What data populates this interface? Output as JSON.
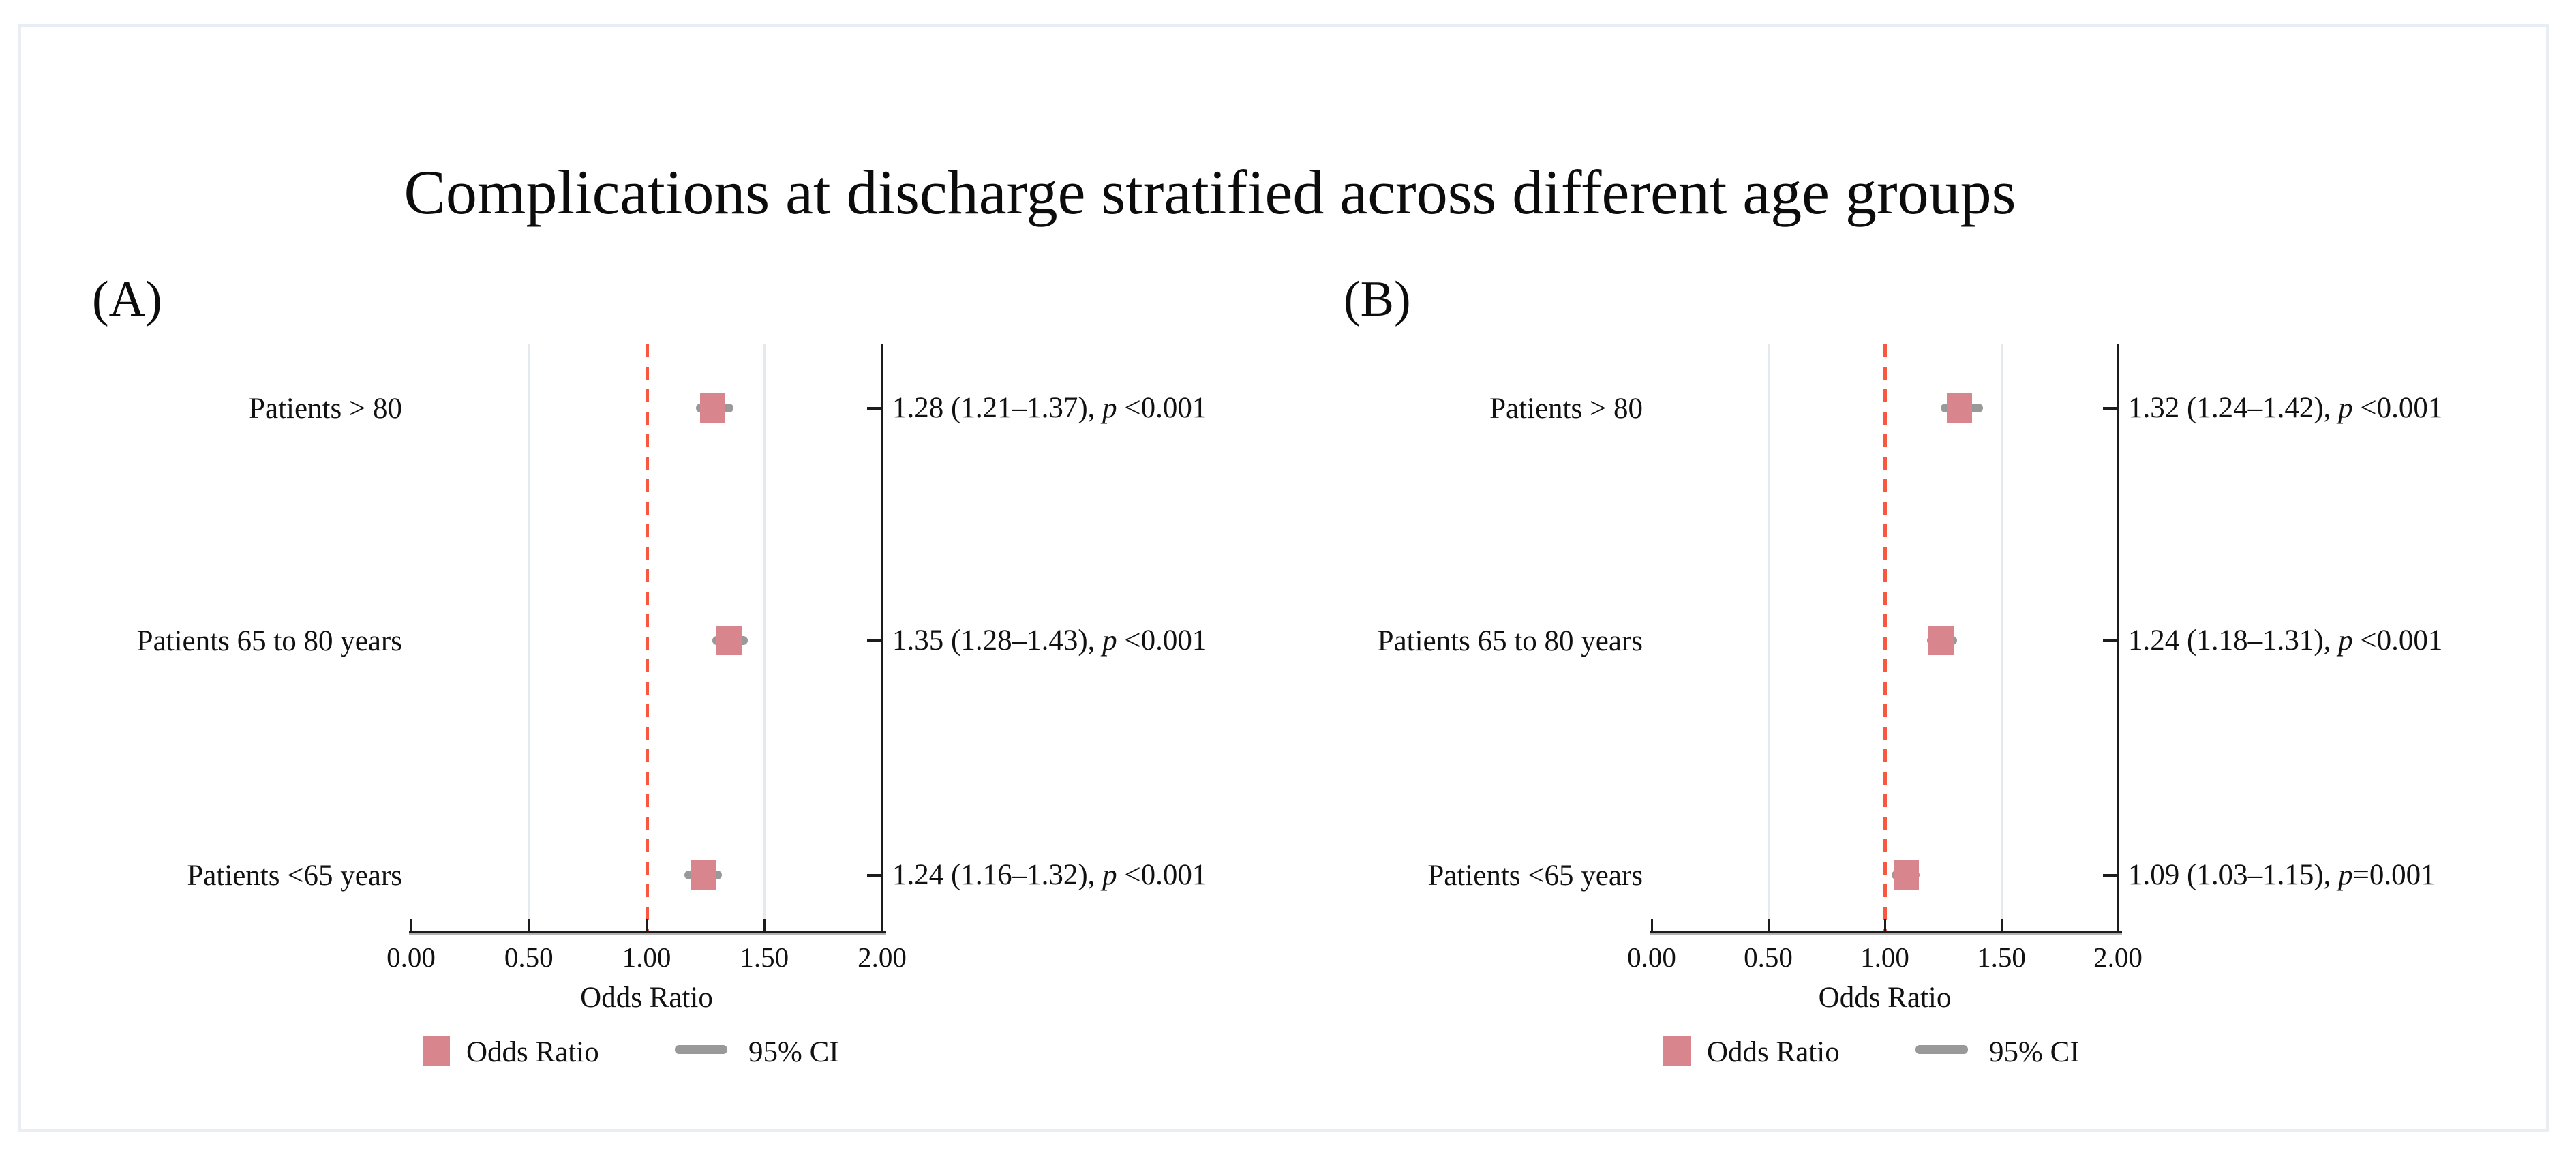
{
  "title": "Complications at discharge stratified across different age groups",
  "p_symbol": "p",
  "colors": {
    "marker": "#d9858d",
    "ci": "#999999",
    "reference_line": "#f9573f",
    "gridline": "#e3e9ef",
    "axis": "#1c1c1c",
    "frame_border": "#e8eef3"
  },
  "chart_data": [
    {
      "type": "scatter",
      "subtype": "forest-plot",
      "panel_label": "(A)",
      "xlabel": "Odds Ratio",
      "xlim": [
        0.0,
        2.0
      ],
      "xticks": [
        {
          "value": 0.0,
          "label": "0.00"
        },
        {
          "value": 0.5,
          "label": "0.50"
        },
        {
          "value": 1.0,
          "label": "1.00"
        },
        {
          "value": 1.5,
          "label": "1.50"
        },
        {
          "value": 2.0,
          "label": "2.00"
        }
      ],
      "gridlines": [
        0.5,
        1.5
      ],
      "reference_line": 1.0,
      "grid": "on",
      "legend_position": "bottom",
      "legend": [
        {
          "label": "Odds Ratio",
          "swatch": "square"
        },
        {
          "label": "95% CI",
          "swatch": "line"
        }
      ],
      "rows": [
        {
          "label": "Patients > 80",
          "or": 1.28,
          "ci_low": 1.21,
          "ci_high": 1.37,
          "estimate_text": "1.28 (1.21–1.37), ",
          "p_text": " <0.001"
        },
        {
          "label": "Patients 65 to 80 years",
          "or": 1.35,
          "ci_low": 1.28,
          "ci_high": 1.43,
          "estimate_text": "1.35 (1.28–1.43), ",
          "p_text": " <0.001"
        },
        {
          "label": "Patients <65 years",
          "or": 1.24,
          "ci_low": 1.16,
          "ci_high": 1.32,
          "estimate_text": "1.24 (1.16–1.32), ",
          "p_text": " <0.001"
        }
      ]
    },
    {
      "type": "scatter",
      "subtype": "forest-plot",
      "panel_label": "(B)",
      "xlabel": "Odds Ratio",
      "xlim": [
        0.0,
        2.0
      ],
      "xticks": [
        {
          "value": 0.0,
          "label": "0.00"
        },
        {
          "value": 0.5,
          "label": "0.50"
        },
        {
          "value": 1.0,
          "label": "1.00"
        },
        {
          "value": 1.5,
          "label": "1.50"
        },
        {
          "value": 2.0,
          "label": "2.00"
        }
      ],
      "gridlines": [
        0.5,
        1.5
      ],
      "reference_line": 1.0,
      "grid": "on",
      "legend_position": "bottom",
      "legend": [
        {
          "label": "Odds Ratio",
          "swatch": "square"
        },
        {
          "label": "95% CI",
          "swatch": "line"
        }
      ],
      "rows": [
        {
          "label": "Patients > 80",
          "or": 1.32,
          "ci_low": 1.24,
          "ci_high": 1.42,
          "estimate_text": "1.32 (1.24–1.42), ",
          "p_text": " <0.001"
        },
        {
          "label": "Patients 65 to 80 years",
          "or": 1.24,
          "ci_low": 1.18,
          "ci_high": 1.31,
          "estimate_text": "1.24 (1.18–1.31), ",
          "p_text": " <0.001"
        },
        {
          "label": "Patients <65 years",
          "or": 1.09,
          "ci_low": 1.03,
          "ci_high": 1.15,
          "estimate_text": "1.09 (1.03–1.15), ",
          "p_text": "=0.001"
        }
      ]
    }
  ]
}
